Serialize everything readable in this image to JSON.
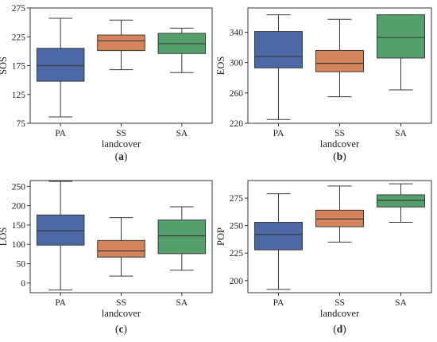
{
  "colors": {
    "PA": "#4a69a6",
    "SS": "#d4855b",
    "SA": "#54a06a",
    "stroke": "#3a3a3a"
  },
  "chart_data": [
    {
      "type": "box",
      "caption_letter": "a",
      "categories": [
        "PA",
        "SS",
        "SA"
      ],
      "xlabel": "landcover",
      "ylabel": "SOS",
      "ylim": [
        75,
        275
      ],
      "yticks": [
        75,
        125,
        175,
        225,
        275
      ],
      "boxes": [
        {
          "category": "PA",
          "min": 86,
          "q1": 148,
          "median": 175,
          "q3": 205,
          "max": 257
        },
        {
          "category": "SS",
          "min": 168,
          "q1": 201,
          "median": 218,
          "q3": 228,
          "max": 254
        },
        {
          "category": "SA",
          "min": 163,
          "q1": 196,
          "median": 213,
          "q3": 231,
          "max": 240
        }
      ]
    },
    {
      "type": "box",
      "caption_letter": "b",
      "categories": [
        "PA",
        "SS",
        "SA"
      ],
      "xlabel": "landcover",
      "ylabel": "EOS",
      "ylim": [
        220,
        372
      ],
      "yticks": [
        220,
        260,
        300,
        340
      ],
      "boxes": [
        {
          "category": "PA",
          "min": 225,
          "q1": 293,
          "median": 308,
          "q3": 341,
          "max": 363
        },
        {
          "category": "SS",
          "min": 255,
          "q1": 288,
          "median": 299,
          "q3": 316,
          "max": 357
        },
        {
          "category": "SA",
          "min": 264,
          "q1": 306,
          "median": 333,
          "q3": 363,
          "max": 363
        }
      ]
    },
    {
      "type": "box",
      "caption_letter": "c",
      "categories": [
        "PA",
        "SS",
        "SA"
      ],
      "xlabel": "landcover",
      "ylabel": "LOS",
      "ylim": [
        -25,
        265
      ],
      "yticks": [
        0,
        50,
        100,
        150,
        200,
        250
      ],
      "boxes": [
        {
          "category": "PA",
          "min": -18,
          "q1": 98,
          "median": 135,
          "q3": 176,
          "max": 263
        },
        {
          "category": "SS",
          "min": 18,
          "q1": 67,
          "median": 83,
          "q3": 110,
          "max": 169
        },
        {
          "category": "SA",
          "min": 33,
          "q1": 76,
          "median": 122,
          "q3": 163,
          "max": 197
        }
      ]
    },
    {
      "type": "box",
      "caption_letter": "d",
      "categories": [
        "PA",
        "SS",
        "SA"
      ],
      "xlabel": "landcover",
      "ylabel": "POP",
      "ylim": [
        189,
        291
      ],
      "yticks": [
        200,
        225,
        250,
        275
      ],
      "boxes": [
        {
          "category": "PA",
          "min": 192,
          "q1": 228,
          "median": 242,
          "q3": 253,
          "max": 279
        },
        {
          "category": "SS",
          "min": 235,
          "q1": 249,
          "median": 256,
          "q3": 264,
          "max": 286
        },
        {
          "category": "SA",
          "min": 253,
          "q1": 267,
          "median": 273,
          "q3": 278,
          "max": 288
        }
      ]
    }
  ]
}
